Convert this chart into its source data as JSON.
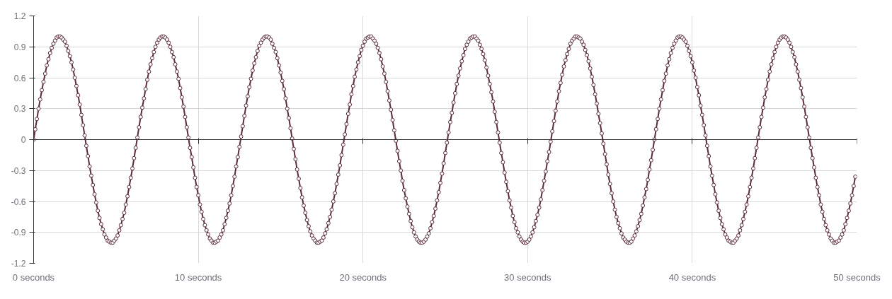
{
  "chart_data": {
    "type": "line",
    "x": [
      0,
      0.1,
      0.2,
      0.3,
      0.4,
      0.5,
      0.6,
      0.7,
      0.8,
      0.9,
      1,
      1.1,
      1.2,
      1.3,
      1.4,
      1.5,
      1.6,
      1.7,
      1.8,
      1.9,
      2,
      2.1,
      2.2,
      2.3,
      2.4,
      2.5,
      2.6,
      2.7,
      2.8,
      2.9,
      3,
      3.1,
      3.2,
      3.3,
      3.4,
      3.5,
      3.6,
      3.7,
      3.8,
      3.9,
      4,
      4.1,
      4.2,
      4.3,
      4.4,
      4.5,
      4.6,
      4.7,
      4.8,
      4.9,
      5,
      5.1,
      5.2,
      5.3,
      5.4,
      5.5,
      5.6,
      5.7,
      5.8,
      5.9,
      6,
      6.1,
      6.2,
      6.3,
      6.4,
      6.5,
      6.6,
      6.7,
      6.8,
      6.9,
      7,
      7.1,
      7.2,
      7.3,
      7.4,
      7.5,
      7.6,
      7.7,
      7.8,
      7.9,
      8,
      8.1,
      8.2,
      8.3,
      8.4,
      8.5,
      8.6,
      8.7,
      8.8,
      8.9,
      9,
      9.1,
      9.2,
      9.3,
      9.4,
      9.5,
      9.6,
      9.7,
      9.8,
      9.9,
      10,
      10.1,
      10.2,
      10.3,
      10.4,
      10.5,
      10.6,
      10.7,
      10.8,
      10.9,
      11,
      11.1,
      11.2,
      11.3,
      11.4,
      11.5,
      11.6,
      11.7,
      11.8,
      11.9,
      12,
      12.1,
      12.2,
      12.3,
      12.4,
      12.5,
      12.6,
      12.7,
      12.8,
      12.9,
      13,
      13.1,
      13.2,
      13.3,
      13.4,
      13.5,
      13.6,
      13.7,
      13.8,
      13.9,
      14,
      14.1,
      14.2,
      14.3,
      14.4,
      14.5,
      14.6,
      14.7,
      14.8,
      14.9,
      15,
      15.1,
      15.2,
      15.3,
      15.4,
      15.5,
      15.6,
      15.7,
      15.8,
      15.9,
      16,
      16.1,
      16.2,
      16.3,
      16.4,
      16.5,
      16.6,
      16.7,
      16.8,
      16.9,
      17,
      17.1,
      17.2,
      17.3,
      17.4,
      17.5,
      17.6,
      17.7,
      17.8,
      17.9,
      18,
      18.1,
      18.2,
      18.3,
      18.4,
      18.5,
      18.6,
      18.7,
      18.8,
      18.9,
      19,
      19.1,
      19.2,
      19.3,
      19.4,
      19.5,
      19.6,
      19.7,
      19.8,
      19.9,
      20,
      20.1,
      20.2,
      20.3,
      20.4,
      20.5,
      20.6,
      20.7,
      20.8,
      20.9,
      21,
      21.1,
      21.2,
      21.3,
      21.4,
      21.5,
      21.6,
      21.7,
      21.8,
      21.9,
      22,
      22.1,
      22.2,
      22.3,
      22.4,
      22.5,
      22.6,
      22.7,
      22.8,
      22.9,
      23,
      23.1,
      23.2,
      23.3,
      23.4,
      23.5,
      23.6,
      23.7,
      23.8,
      23.9,
      24,
      24.1,
      24.2,
      24.3,
      24.4,
      24.5,
      24.6,
      24.7,
      24.8,
      24.9,
      25,
      25.1,
      25.2,
      25.3,
      25.4,
      25.5,
      25.6,
      25.7,
      25.8,
      25.9,
      26,
      26.1,
      26.2,
      26.3,
      26.4,
      26.5,
      26.6,
      26.7,
      26.8,
      26.9,
      27,
      27.1,
      27.2,
      27.3,
      27.4,
      27.5,
      27.6,
      27.7,
      27.8,
      27.9,
      28,
      28.1,
      28.2,
      28.3,
      28.4,
      28.5,
      28.6,
      28.7,
      28.8,
      28.9,
      29,
      29.1,
      29.2,
      29.3,
      29.4,
      29.5,
      29.6,
      29.7,
      29.8,
      29.9,
      30,
      30.1,
      30.2,
      30.3,
      30.4,
      30.5,
      30.6,
      30.7,
      30.8,
      30.9,
      31,
      31.1,
      31.2,
      31.3,
      31.4,
      31.5,
      31.6,
      31.7,
      31.8,
      31.9,
      32,
      32.1,
      32.2,
      32.3,
      32.4,
      32.5,
      32.6,
      32.7,
      32.8,
      32.9,
      33,
      33.1,
      33.2,
      33.3,
      33.4,
      33.5,
      33.6,
      33.7,
      33.8,
      33.9,
      34,
      34.1,
      34.2,
      34.3,
      34.4,
      34.5,
      34.6,
      34.7,
      34.8,
      34.9,
      35,
      35.1,
      35.2,
      35.3,
      35.4,
      35.5,
      35.6,
      35.7,
      35.8,
      35.9,
      36,
      36.1,
      36.2,
      36.3,
      36.4,
      36.5,
      36.6,
      36.7,
      36.8,
      36.9,
      37,
      37.1,
      37.2,
      37.3,
      37.4,
      37.5,
      37.6,
      37.7,
      37.8,
      37.9,
      38,
      38.1,
      38.2,
      38.3,
      38.4,
      38.5,
      38.6,
      38.7,
      38.8,
      38.9,
      39,
      39.1,
      39.2,
      39.3,
      39.4,
      39.5,
      39.6,
      39.7,
      39.8,
      39.9,
      40,
      40.1,
      40.2,
      40.3,
      40.4,
      40.5,
      40.6,
      40.7,
      40.8,
      40.9,
      41,
      41.1,
      41.2,
      41.3,
      41.4,
      41.5,
      41.6,
      41.7,
      41.8,
      41.9,
      42,
      42.1,
      42.2,
      42.3,
      42.4,
      42.5,
      42.6,
      42.7,
      42.8,
      42.9,
      43,
      43.1,
      43.2,
      43.3,
      43.4,
      43.5,
      43.6,
      43.7,
      43.8,
      43.9,
      44,
      44.1,
      44.2,
      44.3,
      44.4,
      44.5,
      44.6,
      44.7,
      44.8,
      44.9,
      45,
      45.1,
      45.2,
      45.3,
      45.4,
      45.5,
      45.6,
      45.7,
      45.8,
      45.9,
      46,
      46.1,
      46.2,
      46.3,
      46.4,
      46.5,
      46.6,
      46.7,
      46.8,
      46.9,
      47,
      47.1,
      47.2,
      47.3,
      47.4,
      47.5,
      47.6,
      47.7,
      47.8,
      47.9,
      48,
      48.1,
      48.2,
      48.3,
      48.4,
      48.5,
      48.6,
      48.7,
      48.8,
      48.9,
      49,
      49.1,
      49.2,
      49.3,
      49.4,
      49.5,
      49.6,
      49.7,
      49.8,
      49.9
    ],
    "series": [
      {
        "color": "#5b2c3c",
        "values": [
          0,
          0.1,
          0.2,
          0.3,
          0.39,
          0.48,
          0.56,
          0.64,
          0.72,
          0.78,
          0.84,
          0.89,
          0.93,
          0.96,
          0.99,
          1.0,
          1.0,
          0.99,
          0.97,
          0.95,
          0.91,
          0.86,
          0.81,
          0.75,
          0.68,
          0.6,
          0.52,
          0.43,
          0.34,
          0.24,
          0.14,
          0.04,
          -0.06,
          -0.16,
          -0.26,
          -0.35,
          -0.44,
          -0.53,
          -0.61,
          -0.69,
          -0.76,
          -0.82,
          -0.87,
          -0.92,
          -0.95,
          -0.98,
          -0.99,
          -1.0,
          -1.0,
          -0.98,
          -0.96,
          -0.93,
          -0.88,
          -0.83,
          -0.77,
          -0.71,
          -0.63,
          -0.55,
          -0.46,
          -0.37,
          -0.28,
          -0.18,
          -0.08,
          0.02,
          0.12,
          0.22,
          0.31,
          0.4,
          0.49,
          0.58,
          0.66,
          0.73,
          0.79,
          0.85,
          0.9,
          0.94,
          0.97,
          0.99,
          1.0,
          1.0,
          0.99,
          0.97,
          0.94,
          0.9,
          0.85,
          0.8,
          0.73,
          0.66,
          0.59,
          0.5,
          0.41,
          0.32,
          0.22,
          0.12,
          0.02,
          -0.08,
          -0.17,
          -0.27,
          -0.37,
          -0.46,
          -0.54,
          -0.63,
          -0.7,
          -0.77,
          -0.83,
          -0.88,
          -0.92,
          -0.96,
          -0.98,
          -1.0,
          -1.0,
          -0.99,
          -0.98,
          -0.95,
          -0.92,
          -0.88,
          -0.82,
          -0.76,
          -0.69,
          -0.62,
          -0.54,
          -0.45,
          -0.36,
          -0.26,
          -0.17,
          -0.07,
          0.03,
          0.13,
          0.23,
          0.33,
          0.42,
          0.51,
          0.59,
          0.67,
          0.74,
          0.8,
          0.86,
          0.91,
          0.94,
          0.97,
          0.99,
          1.0,
          1.0,
          0.99,
          0.97,
          0.93,
          0.89,
          0.85,
          0.79,
          0.72,
          0.65,
          0.57,
          0.49,
          0.4,
          0.3,
          0.21,
          0.11,
          0.01,
          -0.09,
          -0.19,
          -0.29,
          -0.38,
          -0.47,
          -0.56,
          -0.64,
          -0.71,
          -0.78,
          -0.84,
          -0.89,
          -0.93,
          -0.96,
          -0.98,
          -1.0,
          -1.0,
          -0.99,
          -0.98,
          -0.95,
          -0.91,
          -0.87,
          -0.81,
          -0.75,
          -0.68,
          -0.6,
          -0.52,
          -0.43,
          -0.34,
          -0.25,
          -0.15,
          -0.05,
          0.05,
          0.15,
          0.25,
          0.34,
          0.44,
          0.52,
          0.61,
          0.68,
          0.75,
          0.81,
          0.87,
          0.91,
          0.95,
          0.98,
          0.99,
          1.0,
          1.0,
          0.98,
          0.96,
          0.93,
          0.89,
          0.84,
          0.78,
          0.71,
          0.64,
          0.56,
          0.47,
          0.38,
          0.29,
          0.19,
          0.09,
          -0.01,
          -0.11,
          -0.21,
          -0.3,
          -0.4,
          -0.49,
          -0.57,
          -0.65,
          -0.72,
          -0.79,
          -0.85,
          -0.9,
          -0.94,
          -0.97,
          -0.99,
          -1.0,
          -1.0,
          -0.99,
          -0.97,
          -0.94,
          -0.91,
          -0.86,
          -0.8,
          -0.74,
          -0.67,
          -0.59,
          -0.51,
          -0.42,
          -0.33,
          -0.23,
          -0.13,
          -0.03,
          0.07,
          0.17,
          0.26,
          0.36,
          0.45,
          0.54,
          0.62,
          0.69,
          0.76,
          0.82,
          0.88,
          0.92,
          0.95,
          0.98,
          0.99,
          1.0,
          1.0,
          0.98,
          0.96,
          0.92,
          0.88,
          0.83,
          0.77,
          0.7,
          0.62,
          0.54,
          0.46,
          0.37,
          0.27,
          0.17,
          0.07,
          -0.03,
          -0.13,
          -0.22,
          -0.32,
          -0.41,
          -0.5,
          -0.59,
          -0.66,
          -0.74,
          -0.8,
          -0.86,
          -0.9,
          -0.94,
          -0.97,
          -0.99,
          -1.0,
          -1.0,
          -0.99,
          -0.97,
          -0.94,
          -0.9,
          -0.85,
          -0.79,
          -0.73,
          -0.66,
          -0.58,
          -0.49,
          -0.4,
          -0.31,
          -0.21,
          -0.12,
          -0.02,
          0.08,
          0.18,
          0.28,
          0.37,
          0.47,
          0.55,
          0.63,
          0.71,
          0.77,
          0.83,
          0.88,
          0.93,
          0.96,
          0.98,
          1.0,
          1.0,
          0.99,
          0.98,
          0.95,
          0.92,
          0.87,
          0.82,
          0.76,
          0.69,
          0.61,
          0.53,
          0.44,
          0.35,
          0.25,
          0.16,
          0.06,
          -0.04,
          -0.14,
          -0.24,
          -0.34,
          -0.43,
          -0.52,
          -0.6,
          -0.68,
          -0.75,
          -0.81,
          -0.86,
          -0.91,
          -0.95,
          -0.97,
          -0.99,
          -1.0,
          -1.0,
          -0.99,
          -0.96,
          -0.93,
          -0.89,
          -0.84,
          -0.78,
          -0.72,
          -0.64,
          -0.56,
          -0.48,
          -0.39,
          -0.29,
          -0.2,
          -0.1,
          0.0,
          0.1,
          0.2,
          0.3,
          0.39,
          0.48,
          0.57,
          0.64,
          0.72,
          0.78,
          0.84,
          0.89,
          0.93,
          0.96,
          0.99,
          1.0,
          1.0,
          0.99,
          0.97,
          0.95,
          0.91,
          0.86,
          0.81,
          0.75,
          0.67,
          0.6,
          0.51,
          0.43,
          0.33,
          0.24,
          0.14,
          0.04,
          -0.06,
          -0.16,
          -0.26,
          -0.35,
          -0.44,
          -0.53,
          -0.61,
          -0.69,
          -0.76,
          -0.82,
          -0.87,
          -0.92,
          -0.95,
          -0.98,
          -0.99,
          -1.0,
          -1.0,
          -0.98,
          -0.96,
          -0.93,
          -0.88,
          -0.83,
          -0.77,
          -0.7,
          -0.63,
          -0.55,
          -0.46,
          -0.37,
          -0.28,
          -0.18,
          -0.08,
          0.02,
          0.12,
          0.22,
          0.31,
          0.41,
          0.49,
          0.58,
          0.66,
          0.73,
          0.79,
          0.85,
          0.9,
          0.94,
          0.97,
          0.99,
          1.0,
          1.0,
          0.99,
          0.97,
          0.94,
          0.9,
          0.85,
          0.8,
          0.73,
          0.66,
          0.58,
          0.5,
          0.41,
          0.32,
          0.22,
          0.12,
          0.02,
          -0.08,
          -0.18,
          -0.27,
          -0.37,
          -0.46,
          -0.54,
          -0.63,
          -0.7,
          -0.77,
          -0.83,
          -0.88,
          -0.92,
          -0.96,
          -0.98,
          -1.0,
          -1.0,
          -0.99,
          -0.98,
          -0.95,
          -0.92,
          -0.88,
          -0.82,
          -0.76,
          -0.69,
          -0.62,
          -0.54,
          -0.45,
          -0.36
        ]
      }
    ],
    "xlim": [
      0,
      50
    ],
    "xticks": [
      {
        "value": 0,
        "label": "0 seconds"
      },
      {
        "value": 10,
        "label": "10 seconds"
      },
      {
        "value": 20,
        "label": "20 seconds"
      },
      {
        "value": 30,
        "label": "30 seconds"
      },
      {
        "value": 40,
        "label": "40 seconds"
      },
      {
        "value": 50,
        "label": "50 seconds"
      }
    ],
    "ylim": [
      -1.2,
      1.2
    ],
    "yticks": [
      -1.2,
      -0.9,
      -0.6,
      -0.3,
      0,
      0.3,
      0.6,
      0.9,
      1.2
    ],
    "grid": true,
    "marker": "circle",
    "line_style": "solid"
  }
}
